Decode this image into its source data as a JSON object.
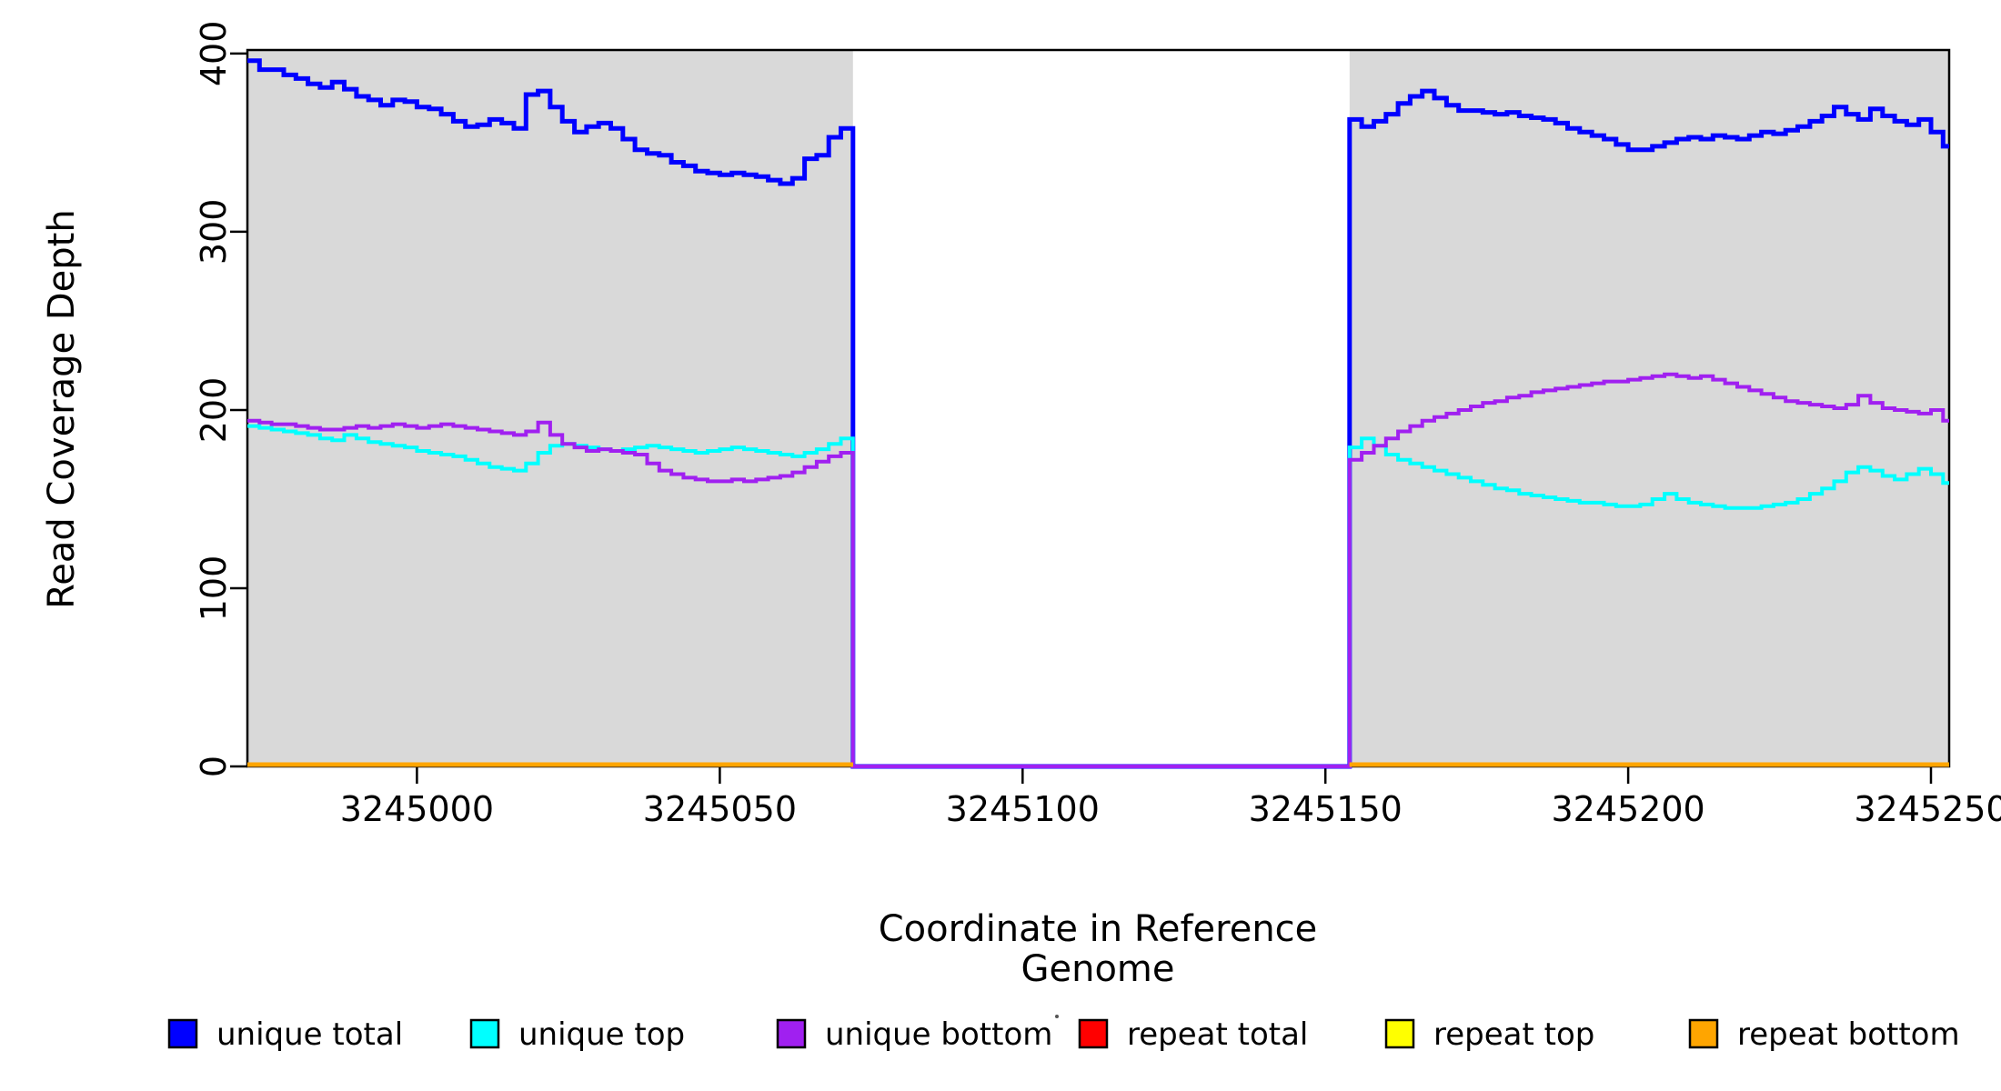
{
  "figure": {
    "background": "#FFFFFF",
    "panel_border_color": "#000000"
  },
  "chart_data": {
    "type": "line",
    "subtype": "step",
    "title": "",
    "xlabel": "Coordinate in Reference Genome",
    "ylabel": "Read Coverage Depth",
    "xlim": [
      3244972,
      3245253
    ],
    "ylim": [
      0,
      402
    ],
    "x_ticks": [
      3245000,
      3245050,
      3245100,
      3245150,
      3245200,
      3245250
    ],
    "y_ticks": [
      0,
      100,
      200,
      300,
      400
    ],
    "grid": false,
    "legend_position": "bottom",
    "panel_background": "#FFFFFF",
    "mapped_region_fill": "#D9D9D9",
    "mapped_regions": [
      [
        3244972,
        3245072
      ],
      [
        3245154,
        3245253
      ]
    ],
    "uncovered_gap": [
      3245072,
      3245154
    ],
    "series": [
      {
        "name": "unique total",
        "color": "#0000FF",
        "width": 5,
        "drops_to_zero_in_gap": true,
        "left": {
          "x0": 3244972,
          "dx": 2,
          "values": [
            396,
            391,
            391,
            388,
            386,
            383,
            381,
            384,
            380,
            376,
            374,
            371,
            374,
            373,
            370,
            369,
            366,
            362,
            359,
            360,
            363,
            361,
            358,
            377,
            379,
            370,
            362,
            356,
            359,
            361,
            358,
            352,
            346,
            344,
            343,
            339,
            337,
            334,
            333,
            332,
            333,
            332,
            331,
            329,
            327,
            330,
            341,
            343,
            353,
            358
          ]
        },
        "right": {
          "x0": 3245154,
          "dx": 2,
          "values": [
            363,
            359,
            362,
            366,
            372,
            376,
            379,
            375,
            371,
            368,
            368,
            367,
            366,
            367,
            365,
            364,
            363,
            361,
            358,
            356,
            354,
            352,
            349,
            346,
            346,
            348,
            350,
            352,
            353,
            352,
            354,
            353,
            352,
            354,
            356,
            355,
            357,
            359,
            362,
            365,
            370,
            366,
            363,
            369,
            365,
            362,
            360,
            363,
            356,
            348
          ]
        }
      },
      {
        "name": "unique top",
        "color": "#00FFFF",
        "width": 4,
        "drops_to_zero_in_gap": true,
        "left": {
          "x0": 3244972,
          "dx": 2,
          "values": [
            191,
            190,
            189,
            188,
            187,
            186,
            184,
            183,
            186,
            184,
            182,
            181,
            180,
            179,
            177,
            176,
            175,
            174,
            172,
            170,
            168,
            167,
            166,
            170,
            176,
            180,
            181,
            180,
            179,
            178,
            177,
            178,
            179,
            180,
            179,
            178,
            177,
            176,
            177,
            178,
            179,
            178,
            177,
            176,
            175,
            174,
            176,
            178,
            181,
            184
          ]
        },
        "right": {
          "x0": 3245154,
          "dx": 2,
          "values": [
            179,
            184,
            180,
            175,
            172,
            170,
            168,
            166,
            164,
            162,
            160,
            158,
            156,
            155,
            153,
            152,
            151,
            150,
            149,
            148,
            148,
            147,
            146,
            146,
            147,
            150,
            153,
            150,
            148,
            147,
            146,
            145,
            145,
            145,
            146,
            147,
            148,
            150,
            153,
            156,
            160,
            165,
            168,
            166,
            163,
            161,
            164,
            167,
            164,
            159
          ]
        }
      },
      {
        "name": "unique bottom",
        "color": "#A020F0",
        "width": 4,
        "drops_to_zero_in_gap": true,
        "left": {
          "x0": 3244972,
          "dx": 2,
          "values": [
            194,
            193,
            192,
            192,
            191,
            190,
            189,
            189,
            190,
            191,
            190,
            191,
            192,
            191,
            190,
            191,
            192,
            191,
            190,
            189,
            188,
            187,
            186,
            188,
            193,
            186,
            181,
            179,
            177,
            178,
            177,
            176,
            175,
            170,
            166,
            164,
            162,
            161,
            160,
            160,
            161,
            160,
            161,
            162,
            163,
            165,
            168,
            171,
            174,
            176
          ]
        },
        "right": {
          "x0": 3245154,
          "dx": 2,
          "values": [
            172,
            176,
            180,
            184,
            188,
            191,
            194,
            196,
            198,
            200,
            202,
            204,
            205,
            207,
            208,
            210,
            211,
            212,
            213,
            214,
            215,
            216,
            216,
            217,
            218,
            219,
            220,
            219,
            218,
            219,
            217,
            215,
            213,
            211,
            209,
            207,
            205,
            204,
            203,
            202,
            201,
            203,
            208,
            204,
            201,
            200,
            199,
            198,
            200,
            194
          ]
        }
      },
      {
        "name": "repeat total",
        "color": "#FF0000",
        "width": 4,
        "flat_value": 0
      },
      {
        "name": "repeat top",
        "color": "#FFFF00",
        "width": 4,
        "flat_value": 0
      },
      {
        "name": "repeat bottom",
        "color": "#FFA500",
        "width": 5,
        "flat_value": 0
      }
    ],
    "legend": {
      "items": [
        {
          "label": "unique total",
          "color": "#0000FF"
        },
        {
          "label": "unique top",
          "color": "#00FFFF"
        },
        {
          "label": "unique bottom",
          "color": "#A020F0"
        },
        {
          "label": "repeat total",
          "color": "#FF0000"
        },
        {
          "label": "repeat top",
          "color": "#FFFF00"
        },
        {
          "label": "repeat bottom",
          "color": "#FFA500"
        }
      ]
    }
  }
}
